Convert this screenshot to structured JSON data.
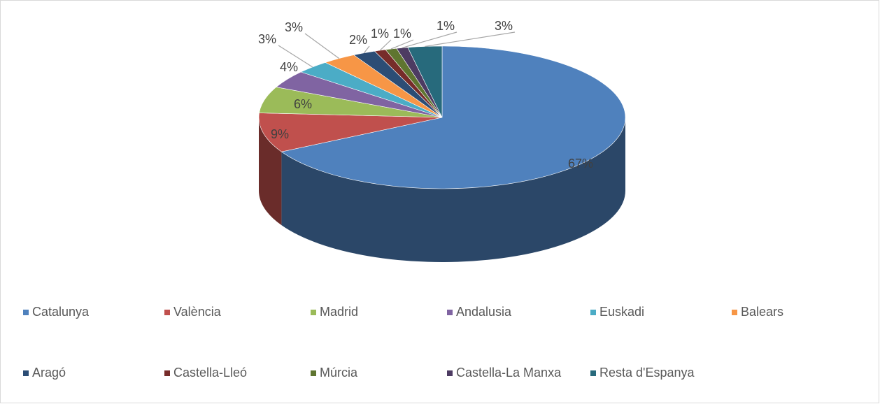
{
  "chart_data": {
    "type": "pie",
    "categories": [
      "Catalunya",
      "València",
      "Madrid",
      "Andalusia",
      "Euskadi",
      "Balears",
      "Aragó",
      "Castella-Lleó",
      "Múrcia",
      "Castella-La Manxa",
      "Resta d'Espanya"
    ],
    "values": [
      67,
      9,
      6,
      4,
      3,
      3,
      2,
      1,
      1,
      1,
      3
    ],
    "value_labels": [
      "67%",
      "9%",
      "6%",
      "4%",
      "3%",
      "3%",
      "2%",
      "1%",
      "1%",
      "1%",
      "3%"
    ],
    "colors": [
      "#4f81bd",
      "#c0504d",
      "#9bbb59",
      "#8064a2",
      "#4bacc6",
      "#f79646",
      "#2c4d75",
      "#772c2a",
      "#5f7530",
      "#4d3b62",
      "#276a7c"
    ],
    "legend": "bottom"
  }
}
